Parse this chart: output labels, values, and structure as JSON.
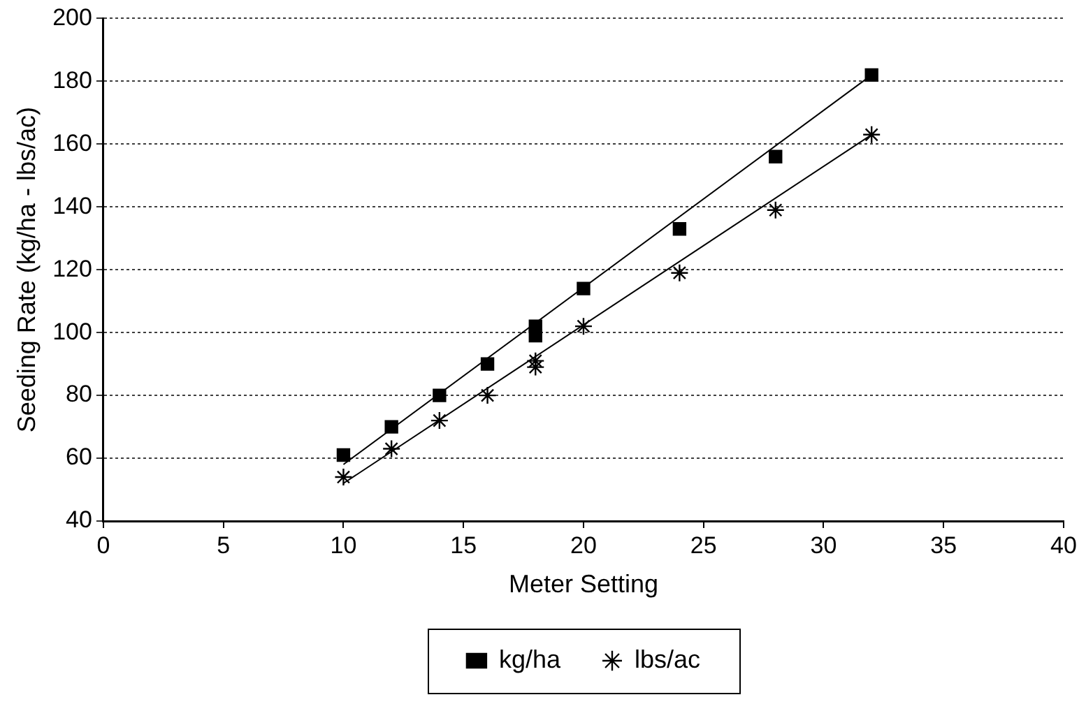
{
  "chart_data": {
    "type": "scatter",
    "xlabel": "Meter Setting",
    "ylabel": "Seeding Rate (kg/ha - lbs/ac)",
    "xlim": [
      0,
      40
    ],
    "xticks": [
      0,
      5,
      10,
      15,
      20,
      25,
      30,
      35,
      40
    ],
    "ylim": [
      40,
      200
    ],
    "yticks": [
      40,
      60,
      80,
      100,
      120,
      140,
      160,
      180,
      200
    ],
    "grid": "y",
    "legend": "bottom",
    "series": [
      {
        "name": "kg/ha",
        "type": "scatter",
        "marker": "square",
        "color": "#000000",
        "x": [
          10,
          12,
          14,
          16,
          18,
          18,
          20,
          24,
          28,
          32
        ],
        "values": [
          61,
          70,
          80,
          90,
          99,
          102,
          114,
          133,
          156,
          182
        ]
      },
      {
        "name": "lbs/ac",
        "type": "scatter",
        "marker": "cross",
        "color": "#000000",
        "x": [
          10,
          12,
          14,
          16,
          18,
          18,
          20,
          24,
          28,
          32
        ],
        "values": [
          54,
          63,
          72,
          80,
          89,
          91,
          102,
          119,
          139,
          163
        ]
      },
      {
        "type": "line",
        "marker": "none",
        "color": "#000000",
        "x": [
          10,
          32
        ],
        "values": [
          58,
          182
        ]
      },
      {
        "type": "line",
        "marker": "none",
        "color": "#000000",
        "x": [
          10,
          32
        ],
        "values": [
          52,
          163
        ]
      }
    ]
  }
}
